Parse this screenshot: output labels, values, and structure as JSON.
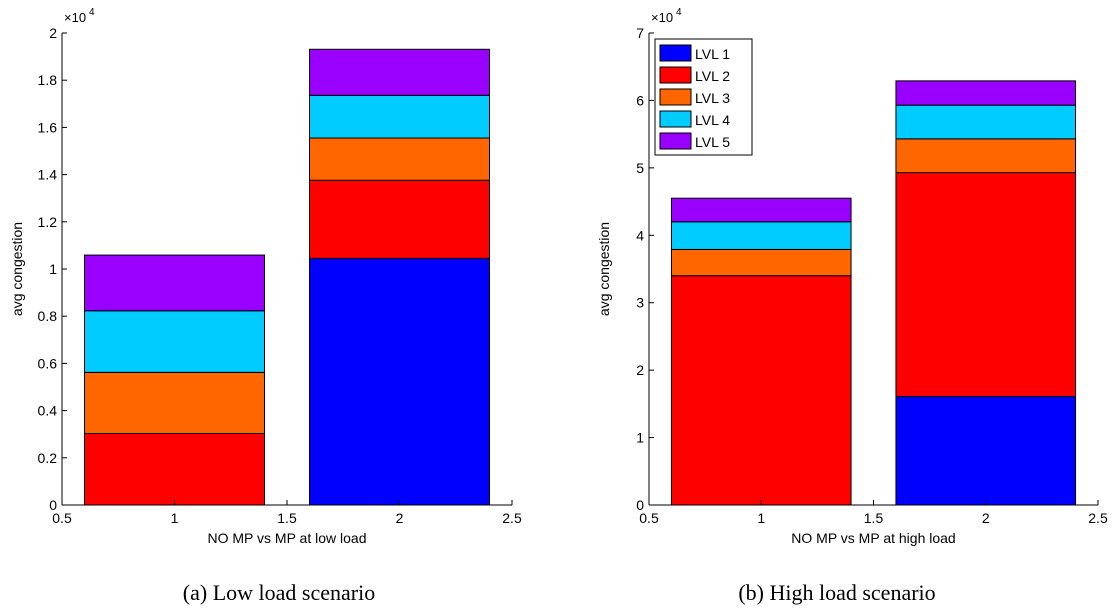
{
  "chart_data": [
    {
      "type": "bar",
      "stacked": true,
      "caption": "(a) Low load scenario",
      "xlabel": "NO MP vs MP at low load",
      "ylabel": "avg congestion",
      "multiplier_base": "×10",
      "multiplier_exp": "4",
      "xlim": [
        0.5,
        2.5
      ],
      "ylim": [
        0,
        20000
      ],
      "xticks": [
        0.5,
        1,
        1.5,
        2,
        2.5
      ],
      "xtick_labels": [
        "0.5",
        "1",
        "1.5",
        "2",
        "2.5"
      ],
      "yticks": [
        0,
        2000,
        4000,
        6000,
        8000,
        10000,
        12000,
        14000,
        16000,
        18000,
        20000
      ],
      "ytick_labels": [
        "0",
        "0.2",
        "0.4",
        "0.6",
        "0.8",
        "1",
        "1.2",
        "1.4",
        "1.6",
        "1.8",
        "2"
      ],
      "categories": [
        1,
        2
      ],
      "series": [
        {
          "name": "LVL 1",
          "color": "#0000ff",
          "values": [
            0,
            10450
          ]
        },
        {
          "name": "LVL 2",
          "color": "#ff0000",
          "values": [
            3030,
            3310
          ]
        },
        {
          "name": "LVL 3",
          "color": "#ff6600",
          "values": [
            2590,
            1790
          ]
        },
        {
          "name": "LVL 4",
          "color": "#00ccff",
          "values": [
            2610,
            1810
          ]
        },
        {
          "name": "LVL 5",
          "color": "#9900ff",
          "values": [
            2360,
            1950
          ]
        }
      ],
      "legend": null,
      "grid": false
    },
    {
      "type": "bar",
      "stacked": true,
      "caption": "(b) High load scenario",
      "xlabel": "NO MP vs MP at high load",
      "ylabel": "avg congestion",
      "multiplier_base": "×10",
      "multiplier_exp": "4",
      "xlim": [
        0.5,
        2.5
      ],
      "ylim": [
        0,
        70000
      ],
      "xticks": [
        0.5,
        1,
        1.5,
        2,
        2.5
      ],
      "xtick_labels": [
        "0.5",
        "1",
        "1.5",
        "2",
        "2.5"
      ],
      "yticks": [
        0,
        10000,
        20000,
        30000,
        40000,
        50000,
        60000,
        70000
      ],
      "ytick_labels": [
        "0",
        "1",
        "2",
        "3",
        "4",
        "5",
        "6",
        "7"
      ],
      "categories": [
        1,
        2
      ],
      "series": [
        {
          "name": "LVL 1",
          "color": "#0000ff",
          "values": [
            0,
            16100
          ]
        },
        {
          "name": "LVL 2",
          "color": "#ff0000",
          "values": [
            34000,
            33200
          ]
        },
        {
          "name": "LVL 3",
          "color": "#ff6600",
          "values": [
            3900,
            5000
          ]
        },
        {
          "name": "LVL 4",
          "color": "#00ccff",
          "values": [
            4100,
            5000
          ]
        },
        {
          "name": "LVL 5",
          "color": "#9900ff",
          "values": [
            3500,
            3600
          ]
        }
      ],
      "legend": "top-left",
      "grid": false
    }
  ]
}
